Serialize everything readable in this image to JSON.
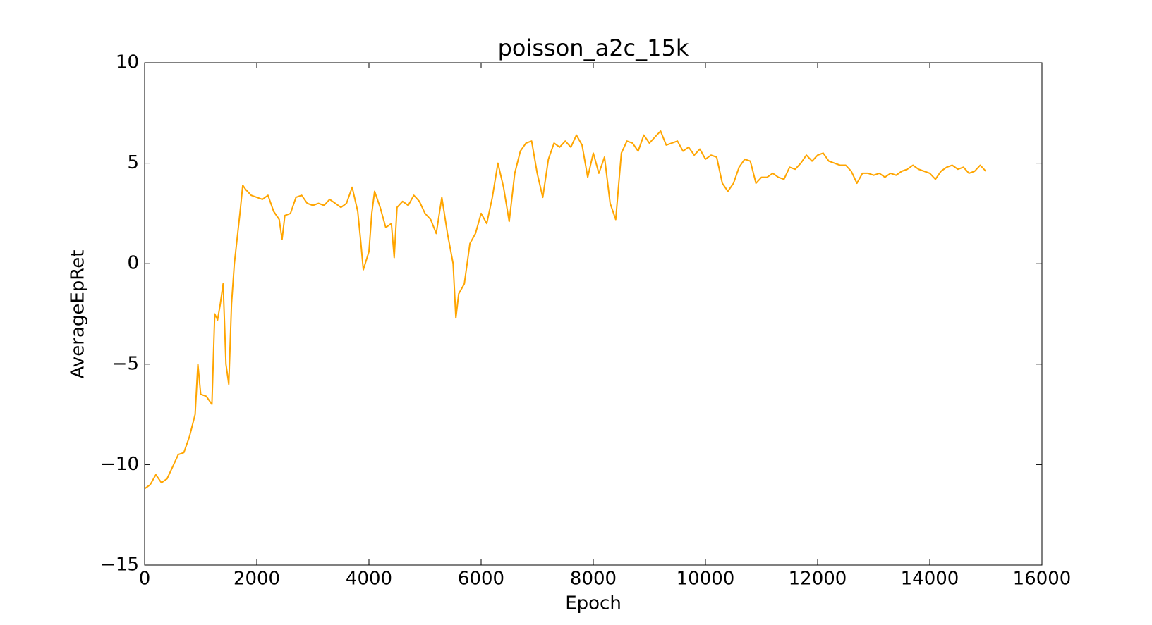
{
  "chart_data": {
    "type": "line",
    "title": "poisson_a2c_15k",
    "x_label": "Epoch",
    "y_label": "AverageEpRet",
    "x": [
      0,
      100,
      200,
      300,
      400,
      500,
      600,
      700,
      800,
      900,
      950,
      1000,
      1100,
      1200,
      1250,
      1300,
      1350,
      1400,
      1450,
      1500,
      1550,
      1600,
      1700,
      1750,
      1800,
      1900,
      2000,
      2100,
      2200,
      2300,
      2400,
      2450,
      2500,
      2600,
      2700,
      2800,
      2900,
      3000,
      3100,
      3200,
      3300,
      3400,
      3500,
      3600,
      3700,
      3800,
      3850,
      3900,
      4000,
      4050,
      4100,
      4200,
      4300,
      4400,
      4450,
      4500,
      4600,
      4700,
      4800,
      4900,
      5000,
      5100,
      5200,
      5300,
      5400,
      5500,
      5550,
      5600,
      5700,
      5800,
      5900,
      6000,
      6100,
      6200,
      6300,
      6400,
      6500,
      6600,
      6700,
      6800,
      6900,
      7000,
      7100,
      7200,
      7300,
      7400,
      7500,
      7600,
      7700,
      7800,
      7900,
      8000,
      8100,
      8200,
      8300,
      8400,
      8500,
      8600,
      8700,
      8800,
      8900,
      9000,
      9100,
      9200,
      9300,
      9400,
      9500,
      9600,
      9700,
      9800,
      9900,
      10000,
      10100,
      10200,
      10300,
      10400,
      10500,
      10600,
      10700,
      10800,
      10900,
      11000,
      11100,
      11200,
      11300,
      11400,
      11500,
      11600,
      11700,
      11800,
      11900,
      12000,
      12100,
      12200,
      12300,
      12400,
      12500,
      12600,
      12700,
      12800,
      12900,
      13000,
      13100,
      13200,
      13300,
      13400,
      13500,
      13600,
      13700,
      13800,
      13900,
      14000,
      14100,
      14200,
      14300,
      14400,
      14500,
      14600,
      14700,
      14800,
      14900,
      15000
    ],
    "series": [
      {
        "name": "AverageEpRet",
        "color": "#ffa500",
        "values": [
          -11.2,
          -11.0,
          -10.5,
          -10.9,
          -10.7,
          -10.1,
          -9.5,
          -9.4,
          -8.6,
          -7.5,
          -5.0,
          -6.5,
          -6.6,
          -7.0,
          -2.5,
          -2.8,
          -2.0,
          -1.0,
          -5.0,
          -6.0,
          -2.0,
          0.0,
          2.5,
          3.9,
          3.7,
          3.4,
          3.3,
          3.2,
          3.4,
          2.6,
          2.2,
          1.2,
          2.4,
          2.5,
          3.3,
          3.4,
          3.0,
          2.9,
          3.0,
          2.9,
          3.2,
          3.0,
          2.8,
          3.0,
          3.8,
          2.6,
          1.2,
          -0.3,
          0.6,
          2.5,
          3.6,
          2.8,
          1.8,
          2.0,
          0.3,
          2.8,
          3.1,
          2.9,
          3.4,
          3.1,
          2.5,
          2.2,
          1.5,
          3.3,
          1.5,
          0.0,
          -2.7,
          -1.5,
          -1.0,
          1.0,
          1.5,
          2.5,
          2.0,
          3.3,
          5.0,
          3.8,
          2.1,
          4.5,
          5.6,
          6.0,
          6.1,
          4.5,
          3.3,
          5.2,
          6.0,
          5.8,
          6.1,
          5.8,
          6.4,
          5.9,
          4.3,
          5.5,
          4.5,
          5.3,
          3.0,
          2.2,
          5.5,
          6.1,
          6.0,
          5.6,
          6.4,
          6.0,
          6.3,
          6.6,
          5.9,
          6.0,
          6.1,
          5.6,
          5.8,
          5.4,
          5.7,
          5.2,
          5.4,
          5.3,
          4.0,
          3.6,
          4.0,
          4.8,
          5.2,
          5.1,
          4.0,
          4.3,
          4.3,
          4.5,
          4.3,
          4.2,
          4.8,
          4.7,
          5.0,
          5.4,
          5.1,
          5.4,
          5.5,
          5.1,
          5.0,
          4.9,
          4.9,
          4.6,
          4.0,
          4.5,
          4.5,
          4.4,
          4.5,
          4.3,
          4.5,
          4.4,
          4.6,
          4.7,
          4.9,
          4.7,
          4.6,
          4.5,
          4.2,
          4.6,
          4.8,
          4.9,
          4.7,
          4.8,
          4.5,
          4.6,
          4.9,
          4.6
        ]
      }
    ],
    "xlim": [
      0,
      16000
    ],
    "xticks": [
      0,
      2000,
      4000,
      6000,
      8000,
      10000,
      12000,
      14000,
      16000
    ],
    "ylim": [
      -15,
      10
    ],
    "yticks": [
      {
        "value": -15,
        "label": "−15"
      },
      {
        "value": -10,
        "label": "−10"
      },
      {
        "value": -5,
        "label": "−5"
      },
      0,
      5,
      10
    ],
    "grid": false
  }
}
